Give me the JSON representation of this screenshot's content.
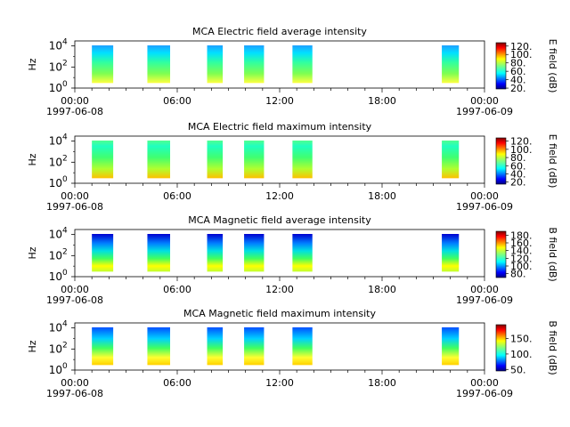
{
  "chart_data": [
    {
      "type": "heatmap",
      "title": "MCA  Electric field average intensity",
      "ylabel": "Hz",
      "y_scale": "log",
      "ylim": [
        1,
        30000
      ],
      "yticks": [
        {
          "value": 1,
          "base": "10",
          "exp": "0"
        },
        {
          "value": 100,
          "base": "10",
          "exp": "2"
        },
        {
          "value": 10000,
          "base": "10",
          "exp": "4"
        }
      ],
      "x_range": [
        "1997-06-08 00:00",
        "1997-06-09 00:00"
      ],
      "xticks": [
        {
          "time": "00:00",
          "date": "1997-06-08"
        },
        {
          "time": "06:00",
          "date": ""
        },
        {
          "time": "12:00",
          "date": ""
        },
        {
          "time": "18:00",
          "date": ""
        },
        {
          "time": "00:00",
          "date": "1997-06-09"
        }
      ],
      "data_intervals": [
        [
          "01:00",
          "02:15"
        ],
        [
          "04:15",
          "05:35"
        ],
        [
          "07:45",
          "08:40"
        ],
        [
          "09:55",
          "11:05"
        ],
        [
          "12:45",
          "13:55"
        ],
        [
          "21:30",
          "22:30"
        ]
      ],
      "colorbar": {
        "label": "E field (dB)",
        "range": [
          18,
          128
        ],
        "ticks": [
          "20.",
          "40.",
          "60.",
          "80.",
          "100.",
          "120."
        ]
      }
    },
    {
      "type": "heatmap",
      "title": "MCA  Electric field maximum intensity",
      "ylabel": "Hz",
      "y_scale": "log",
      "ylim": [
        1,
        30000
      ],
      "yticks": [
        {
          "value": 1,
          "base": "10",
          "exp": "0"
        },
        {
          "value": 100,
          "base": "10",
          "exp": "2"
        },
        {
          "value": 10000,
          "base": "10",
          "exp": "4"
        }
      ],
      "x_range": [
        "1997-06-08 00:00",
        "1997-06-09 00:00"
      ],
      "xticks": [
        {
          "time": "00:00",
          "date": "1997-06-08"
        },
        {
          "time": "06:00",
          "date": ""
        },
        {
          "time": "12:00",
          "date": ""
        },
        {
          "time": "18:00",
          "date": ""
        },
        {
          "time": "00:00",
          "date": "1997-06-09"
        }
      ],
      "data_intervals": [
        [
          "01:00",
          "02:15"
        ],
        [
          "04:15",
          "05:35"
        ],
        [
          "07:45",
          "08:40"
        ],
        [
          "09:55",
          "11:05"
        ],
        [
          "12:45",
          "13:55"
        ],
        [
          "21:30",
          "22:30"
        ]
      ],
      "colorbar": {
        "label": "E field (dB)",
        "range": [
          15,
          128
        ],
        "ticks": [
          "20.",
          "40.",
          "60.",
          "80.",
          "100.",
          "120."
        ]
      }
    },
    {
      "type": "heatmap",
      "title": "MCA  Magnetic field average intensity",
      "ylabel": "Hz",
      "y_scale": "log",
      "ylim": [
        1,
        30000
      ],
      "yticks": [
        {
          "value": 1,
          "base": "10",
          "exp": "0"
        },
        {
          "value": 100,
          "base": "10",
          "exp": "2"
        },
        {
          "value": 10000,
          "base": "10",
          "exp": "4"
        }
      ],
      "x_range": [
        "1997-06-08 00:00",
        "1997-06-09 00:00"
      ],
      "xticks": [
        {
          "time": "00:00",
          "date": "1997-06-08"
        },
        {
          "time": "06:00",
          "date": ""
        },
        {
          "time": "12:00",
          "date": ""
        },
        {
          "time": "18:00",
          "date": ""
        },
        {
          "time": "00:00",
          "date": "1997-06-09"
        }
      ],
      "data_intervals": [
        [
          "01:00",
          "02:15"
        ],
        [
          "04:15",
          "05:35"
        ],
        [
          "07:45",
          "08:40"
        ],
        [
          "09:55",
          "11:05"
        ],
        [
          "12:45",
          "13:55"
        ],
        [
          "21:30",
          "22:30"
        ]
      ],
      "colorbar": {
        "label": "B field (dB)",
        "range": [
          70,
          190
        ],
        "ticks": [
          "80.",
          "100.",
          "120.",
          "140.",
          "160.",
          "180."
        ]
      }
    },
    {
      "type": "heatmap",
      "title": "MCA  Magnetic field maximum intensity",
      "ylabel": "Hz",
      "y_scale": "log",
      "ylim": [
        1,
        30000
      ],
      "yticks": [
        {
          "value": 1,
          "base": "10",
          "exp": "0"
        },
        {
          "value": 100,
          "base": "10",
          "exp": "2"
        },
        {
          "value": 10000,
          "base": "10",
          "exp": "4"
        }
      ],
      "x_range": [
        "1997-06-08 00:00",
        "1997-06-09 00:00"
      ],
      "xticks": [
        {
          "time": "00:00",
          "date": "1997-06-08"
        },
        {
          "time": "06:00",
          "date": ""
        },
        {
          "time": "12:00",
          "date": ""
        },
        {
          "time": "18:00",
          "date": ""
        },
        {
          "time": "00:00",
          "date": "1997-06-09"
        }
      ],
      "data_intervals": [
        [
          "01:00",
          "02:15"
        ],
        [
          "04:15",
          "05:35"
        ],
        [
          "07:45",
          "08:40"
        ],
        [
          "09:55",
          "11:05"
        ],
        [
          "12:45",
          "13:55"
        ],
        [
          "21:30",
          "22:30"
        ]
      ],
      "colorbar": {
        "label": "B field (dB)",
        "range": [
          45,
          195
        ],
        "ticks": [
          "50.",
          "100.",
          "150."
        ]
      }
    }
  ]
}
